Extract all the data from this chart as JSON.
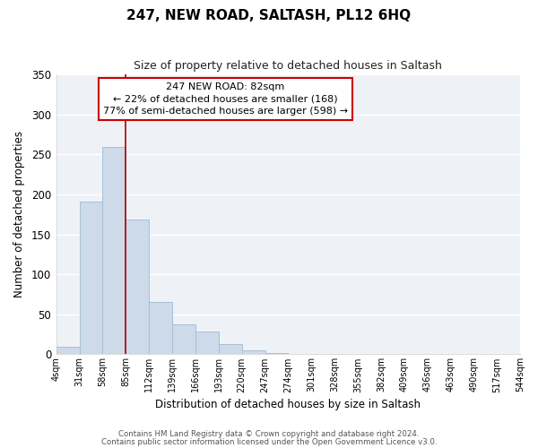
{
  "title": "247, NEW ROAD, SALTASH, PL12 6HQ",
  "subtitle": "Size of property relative to detached houses in Saltash",
  "xlabel": "Distribution of detached houses by size in Saltash",
  "ylabel": "Number of detached properties",
  "bar_color": "#ccdaea",
  "bar_edge_color": "#a8c0d6",
  "background_color": "#ffffff",
  "plot_bg_color": "#eef2f7",
  "grid_color": "#ffffff",
  "bin_labels": [
    "4sqm",
    "31sqm",
    "58sqm",
    "85sqm",
    "112sqm",
    "139sqm",
    "166sqm",
    "193sqm",
    "220sqm",
    "247sqm",
    "274sqm",
    "301sqm",
    "328sqm",
    "355sqm",
    "382sqm",
    "409sqm",
    "436sqm",
    "463sqm",
    "490sqm",
    "517sqm",
    "544sqm"
  ],
  "bin_edges": [
    4,
    31,
    58,
    85,
    112,
    139,
    166,
    193,
    220,
    247,
    274,
    301,
    328,
    355,
    382,
    409,
    436,
    463,
    490,
    517,
    544
  ],
  "bar_heights": [
    9,
    191,
    259,
    168,
    65,
    37,
    29,
    13,
    5,
    2,
    0,
    1,
    0,
    0,
    0,
    0,
    0,
    0,
    1,
    0
  ],
  "ylim": [
    0,
    350
  ],
  "yticks": [
    0,
    50,
    100,
    150,
    200,
    250,
    300,
    350
  ],
  "property_line_x": 85,
  "annotation_text": "247 NEW ROAD: 82sqm\n← 22% of detached houses are smaller (168)\n77% of semi-detached houses are larger (598) →",
  "annotation_box_color": "#ffffff",
  "annotation_border_color": "#cc0000",
  "property_line_color": "#aa0000",
  "footer_line1": "Contains HM Land Registry data © Crown copyright and database right 2024.",
  "footer_line2": "Contains public sector information licensed under the Open Government Licence v3.0."
}
